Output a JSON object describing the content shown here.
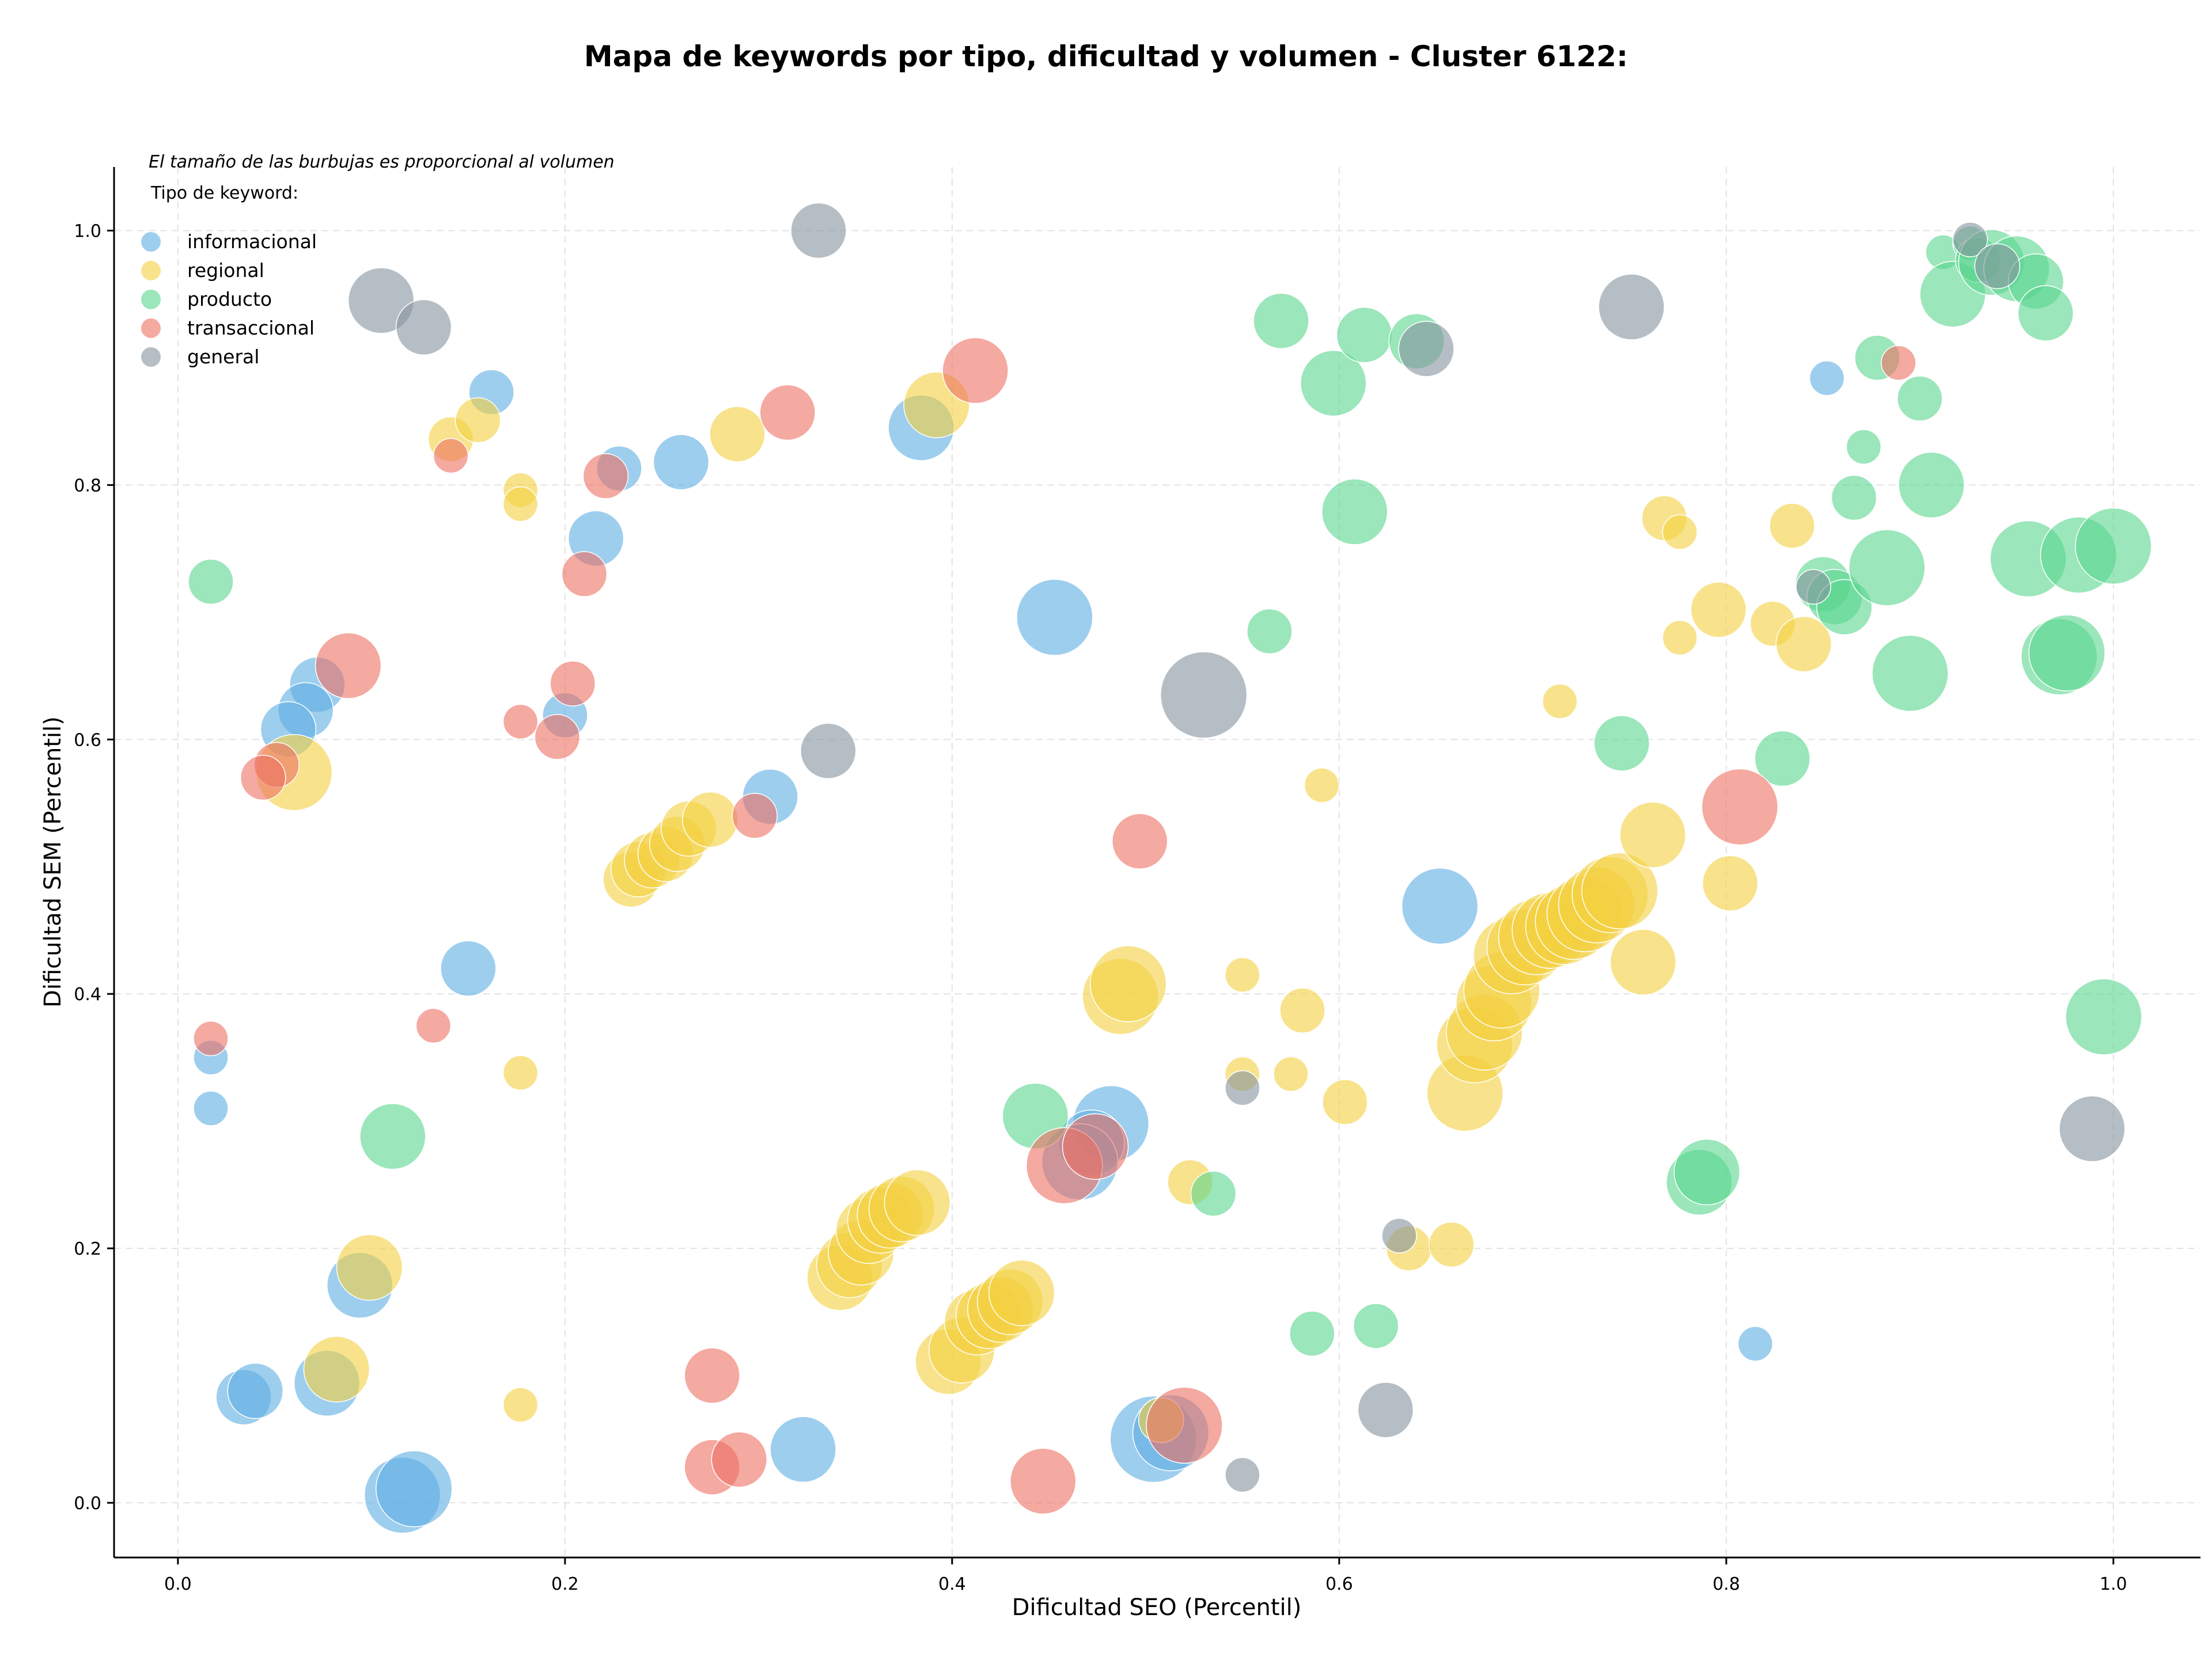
{
  "chart_data": {
    "type": "scatter",
    "title": "Mapa de keywords por tipo, dificultad y volumen - Cluster 6122:",
    "xlabel": "Dificultad SEO (Percentil)",
    "ylabel": "Dificultad SEM (Percentil)",
    "xlim": [
      -0.033,
      1.045
    ],
    "ylim": [
      -0.043,
      1.05
    ],
    "x_ticks": [
      "0.0",
      "0.2",
      "0.4",
      "0.6",
      "0.8",
      "1.0"
    ],
    "y_ticks": [
      "0.0",
      "0.2",
      "0.4",
      "0.6",
      "0.8",
      "1.0"
    ],
    "grid": true,
    "legend_placement": "top-left",
    "size_note": "El tamaño de las burbujas es proporcional al volumen",
    "legend_title": "Tipo de keyword:",
    "series": [
      {
        "name": "informacional",
        "color": "#5DADE2",
        "points": [
          [
            0.162,
            0.873,
            3
          ],
          [
            0.228,
            0.813,
            3
          ],
          [
            0.26,
            0.818,
            4
          ],
          [
            0.216,
            0.758,
            4
          ],
          [
            0.384,
            0.845,
            5
          ],
          [
            0.453,
            0.696,
            6
          ],
          [
            0.072,
            0.643,
            4
          ],
          [
            0.066,
            0.623,
            4
          ],
          [
            0.057,
            0.608,
            4
          ],
          [
            0.2,
            0.619,
            3
          ],
          [
            0.306,
            0.555,
            4
          ],
          [
            0.15,
            0.42,
            4
          ],
          [
            0.017,
            0.35,
            2
          ],
          [
            0.017,
            0.31,
            2
          ],
          [
            0.652,
            0.469,
            6
          ],
          [
            0.482,
            0.298,
            6
          ],
          [
            0.472,
            0.283,
            5
          ],
          [
            0.466,
            0.268,
            6
          ],
          [
            0.094,
            0.171,
            5
          ],
          [
            0.077,
            0.094,
            5
          ],
          [
            0.034,
            0.083,
            4
          ],
          [
            0.04,
            0.088,
            4
          ],
          [
            0.116,
            0.006,
            6
          ],
          [
            0.122,
            0.011,
            6
          ],
          [
            0.323,
            0.042,
            5
          ],
          [
            0.504,
            0.05,
            7
          ],
          [
            0.513,
            0.055,
            6
          ],
          [
            0.815,
            0.125,
            2
          ],
          [
            0.852,
            0.884,
            2
          ]
        ]
      },
      {
        "name": "regional",
        "color": "#F4D03F",
        "points": [
          [
            0.141,
            0.836,
            3
          ],
          [
            0.155,
            0.851,
            3
          ],
          [
            0.177,
            0.796,
            2
          ],
          [
            0.177,
            0.785,
            2
          ],
          [
            0.289,
            0.84,
            4
          ],
          [
            0.392,
            0.863,
            5
          ],
          [
            0.06,
            0.574,
            6
          ],
          [
            0.234,
            0.49,
            4
          ],
          [
            0.238,
            0.498,
            4
          ],
          [
            0.245,
            0.505,
            4
          ],
          [
            0.252,
            0.51,
            4
          ],
          [
            0.258,
            0.518,
            4
          ],
          [
            0.264,
            0.53,
            4
          ],
          [
            0.275,
            0.537,
            4
          ],
          [
            0.177,
            0.338,
            2
          ],
          [
            0.099,
            0.185,
            5
          ],
          [
            0.082,
            0.105,
            5
          ],
          [
            0.177,
            0.077,
            2
          ],
          [
            0.342,
            0.177,
            5
          ],
          [
            0.347,
            0.187,
            5
          ],
          [
            0.353,
            0.197,
            5
          ],
          [
            0.357,
            0.214,
            5
          ],
          [
            0.363,
            0.222,
            5
          ],
          [
            0.368,
            0.226,
            5
          ],
          [
            0.374,
            0.231,
            5
          ],
          [
            0.382,
            0.236,
            5
          ],
          [
            0.398,
            0.111,
            5
          ],
          [
            0.405,
            0.12,
            5
          ],
          [
            0.413,
            0.142,
            5
          ],
          [
            0.419,
            0.147,
            5
          ],
          [
            0.425,
            0.152,
            5
          ],
          [
            0.43,
            0.158,
            5
          ],
          [
            0.436,
            0.165,
            5
          ],
          [
            0.487,
            0.398,
            6
          ],
          [
            0.491,
            0.408,
            6
          ],
          [
            0.508,
            0.065,
            3
          ],
          [
            0.523,
            0.252,
            3
          ],
          [
            0.55,
            0.415,
            2
          ],
          [
            0.55,
            0.337,
            2
          ],
          [
            0.575,
            0.337,
            2
          ],
          [
            0.581,
            0.387,
            3
          ],
          [
            0.591,
            0.564,
            2
          ],
          [
            0.603,
            0.315,
            3
          ],
          [
            0.636,
            0.2,
            3
          ],
          [
            0.658,
            0.203,
            3
          ],
          [
            0.665,
            0.322,
            6
          ],
          [
            0.67,
            0.36,
            6
          ],
          [
            0.675,
            0.37,
            6
          ],
          [
            0.68,
            0.393,
            6
          ],
          [
            0.684,
            0.403,
            6
          ],
          [
            0.689,
            0.43,
            6
          ],
          [
            0.696,
            0.437,
            6
          ],
          [
            0.702,
            0.445,
            6
          ],
          [
            0.709,
            0.45,
            6
          ],
          [
            0.716,
            0.453,
            6
          ],
          [
            0.721,
            0.457,
            6
          ],
          [
            0.727,
            0.463,
            6
          ],
          [
            0.733,
            0.47,
            6
          ],
          [
            0.74,
            0.478,
            6
          ],
          [
            0.745,
            0.481,
            6
          ],
          [
            0.757,
            0.425,
            5
          ],
          [
            0.762,
            0.525,
            5
          ],
          [
            0.714,
            0.63,
            2
          ],
          [
            0.768,
            0.774,
            3
          ],
          [
            0.776,
            0.763,
            2
          ],
          [
            0.776,
            0.68,
            2
          ],
          [
            0.796,
            0.702,
            4
          ],
          [
            0.802,
            0.487,
            4
          ],
          [
            0.824,
            0.691,
            3
          ],
          [
            0.834,
            0.768,
            3
          ],
          [
            0.84,
            0.675,
            4
          ]
        ]
      },
      {
        "name": "producto",
        "color": "#58D68D",
        "points": [
          [
            0.017,
            0.724,
            3
          ],
          [
            0.111,
            0.288,
            5
          ],
          [
            0.443,
            0.304,
            5
          ],
          [
            0.535,
            0.243,
            3
          ],
          [
            0.57,
            0.929,
            4
          ],
          [
            0.597,
            0.88,
            5
          ],
          [
            0.613,
            0.918,
            4
          ],
          [
            0.64,
            0.913,
            4
          ],
          [
            0.608,
            0.779,
            5
          ],
          [
            0.564,
            0.685,
            3
          ],
          [
            0.586,
            0.133,
            3
          ],
          [
            0.619,
            0.139,
            3
          ],
          [
            0.746,
            0.597,
            4
          ],
          [
            0.786,
            0.252,
            5
          ],
          [
            0.79,
            0.26,
            5
          ],
          [
            0.829,
            0.585,
            4
          ],
          [
            0.85,
            0.722,
            4
          ],
          [
            0.856,
            0.712,
            4
          ],
          [
            0.861,
            0.704,
            4
          ],
          [
            0.866,
            0.79,
            3
          ],
          [
            0.871,
            0.83,
            2
          ],
          [
            0.878,
            0.9,
            3
          ],
          [
            0.883,
            0.735,
            6
          ],
          [
            0.895,
            0.652,
            6
          ],
          [
            0.9,
            0.868,
            3
          ],
          [
            0.906,
            0.8,
            5
          ],
          [
            0.912,
            0.983,
            2
          ],
          [
            0.917,
            0.95,
            5
          ],
          [
            0.926,
            0.99,
            2
          ],
          [
            0.93,
            0.977,
            3
          ],
          [
            0.937,
            0.975,
            5
          ],
          [
            0.95,
            0.97,
            5
          ],
          [
            0.956,
            0.742,
            6
          ],
          [
            0.96,
            0.96,
            4
          ],
          [
            0.965,
            0.935,
            4
          ],
          [
            0.972,
            0.665,
            6
          ],
          [
            0.976,
            0.668,
            6
          ],
          [
            0.982,
            0.745,
            6
          ],
          [
            0.995,
            0.382,
            6
          ],
          [
            1.0,
            0.752,
            6
          ]
        ]
      },
      {
        "name": "transaccional",
        "color": "#EC7063",
        "points": [
          [
            0.141,
            0.823,
            2
          ],
          [
            0.315,
            0.857,
            4
          ],
          [
            0.412,
            0.89,
            5
          ],
          [
            0.221,
            0.807,
            3
          ],
          [
            0.21,
            0.73,
            3
          ],
          [
            0.088,
            0.658,
            5
          ],
          [
            0.204,
            0.644,
            3
          ],
          [
            0.177,
            0.614,
            2
          ],
          [
            0.196,
            0.602,
            3
          ],
          [
            0.051,
            0.58,
            3
          ],
          [
            0.044,
            0.57,
            3
          ],
          [
            0.298,
            0.54,
            3
          ],
          [
            0.497,
            0.52,
            4
          ],
          [
            0.807,
            0.547,
            6
          ],
          [
            0.017,
            0.365,
            2
          ],
          [
            0.132,
            0.375,
            2
          ],
          [
            0.458,
            0.265,
            6
          ],
          [
            0.474,
            0.28,
            5
          ],
          [
            0.276,
            0.1,
            4
          ],
          [
            0.276,
            0.028,
            4
          ],
          [
            0.29,
            0.034,
            4
          ],
          [
            0.447,
            0.017,
            5
          ],
          [
            0.52,
            0.061,
            6
          ],
          [
            0.889,
            0.896,
            2
          ]
        ]
      },
      {
        "name": "general",
        "color": "#85929E",
        "points": [
          [
            0.105,
            0.945,
            5
          ],
          [
            0.127,
            0.924,
            4
          ],
          [
            0.331,
            1.0,
            4
          ],
          [
            0.336,
            0.591,
            4
          ],
          [
            0.53,
            0.635,
            7
          ],
          [
            0.645,
            0.907,
            4
          ],
          [
            0.751,
            0.94,
            5
          ],
          [
            0.55,
            0.326,
            2
          ],
          [
            0.631,
            0.21,
            2
          ],
          [
            0.624,
            0.073,
            4
          ],
          [
            0.55,
            0.022,
            2
          ],
          [
            0.845,
            0.72,
            2
          ],
          [
            0.926,
            0.993,
            2
          ],
          [
            0.94,
            0.972,
            3
          ],
          [
            0.989,
            0.294,
            5
          ]
        ]
      }
    ]
  }
}
